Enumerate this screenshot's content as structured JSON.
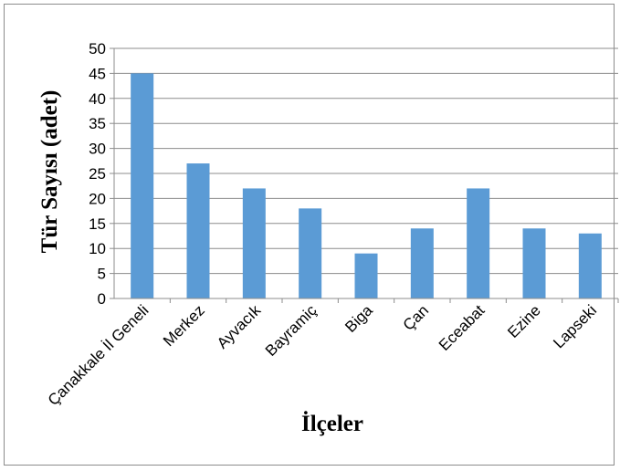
{
  "chart_data": {
    "type": "bar",
    "title": "",
    "xlabel": "İlçeler",
    "ylabel": "Tür Sayısı (adet)",
    "categories": [
      "Çanakkale İl Geneli",
      "Merkez",
      "Ayvacık",
      "Bayramiç",
      "Biga",
      "Çan",
      "Eceabat",
      "Ezine",
      "Lapseki"
    ],
    "values": [
      45,
      27,
      22,
      18,
      9,
      14,
      22,
      14,
      13
    ],
    "ylim": [
      0,
      50
    ],
    "yticks": [
      "0",
      "5",
      "10",
      "15",
      "20",
      "25",
      "30",
      "35",
      "40",
      "45",
      "50"
    ],
    "grid": true,
    "legend": "none",
    "colors": {
      "bar": "#5b9bd5",
      "grid": "#8c8c8c",
      "axis": "#8c8c8c"
    }
  }
}
